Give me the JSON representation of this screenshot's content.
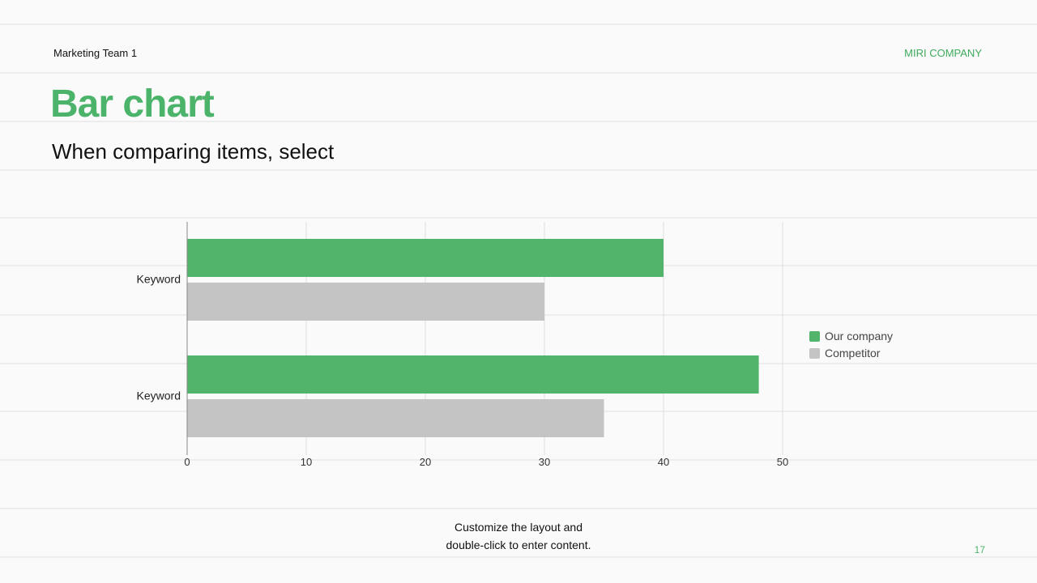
{
  "header": {
    "team": "Marketing Team 1",
    "company": "MIRI COMPANY"
  },
  "slide": {
    "title": "Bar chart",
    "subtitle": "When comparing items, select"
  },
  "chart_data": {
    "type": "bar",
    "orientation": "horizontal",
    "categories": [
      "Keyword",
      "Keyword"
    ],
    "series": [
      {
        "name": "Our company",
        "values": [
          40,
          48
        ],
        "color": "#52b36b"
      },
      {
        "name": "Competitor",
        "values": [
          30,
          35
        ],
        "color": "#c4c4c4"
      }
    ],
    "xlim": [
      0,
      50
    ],
    "xticks": [
      0,
      10,
      20,
      30,
      40,
      50
    ],
    "grid": true,
    "legend_position": "right"
  },
  "footer": {
    "line1": "Customize the layout and",
    "line2": "double-click to enter content.",
    "page_number": "17"
  }
}
